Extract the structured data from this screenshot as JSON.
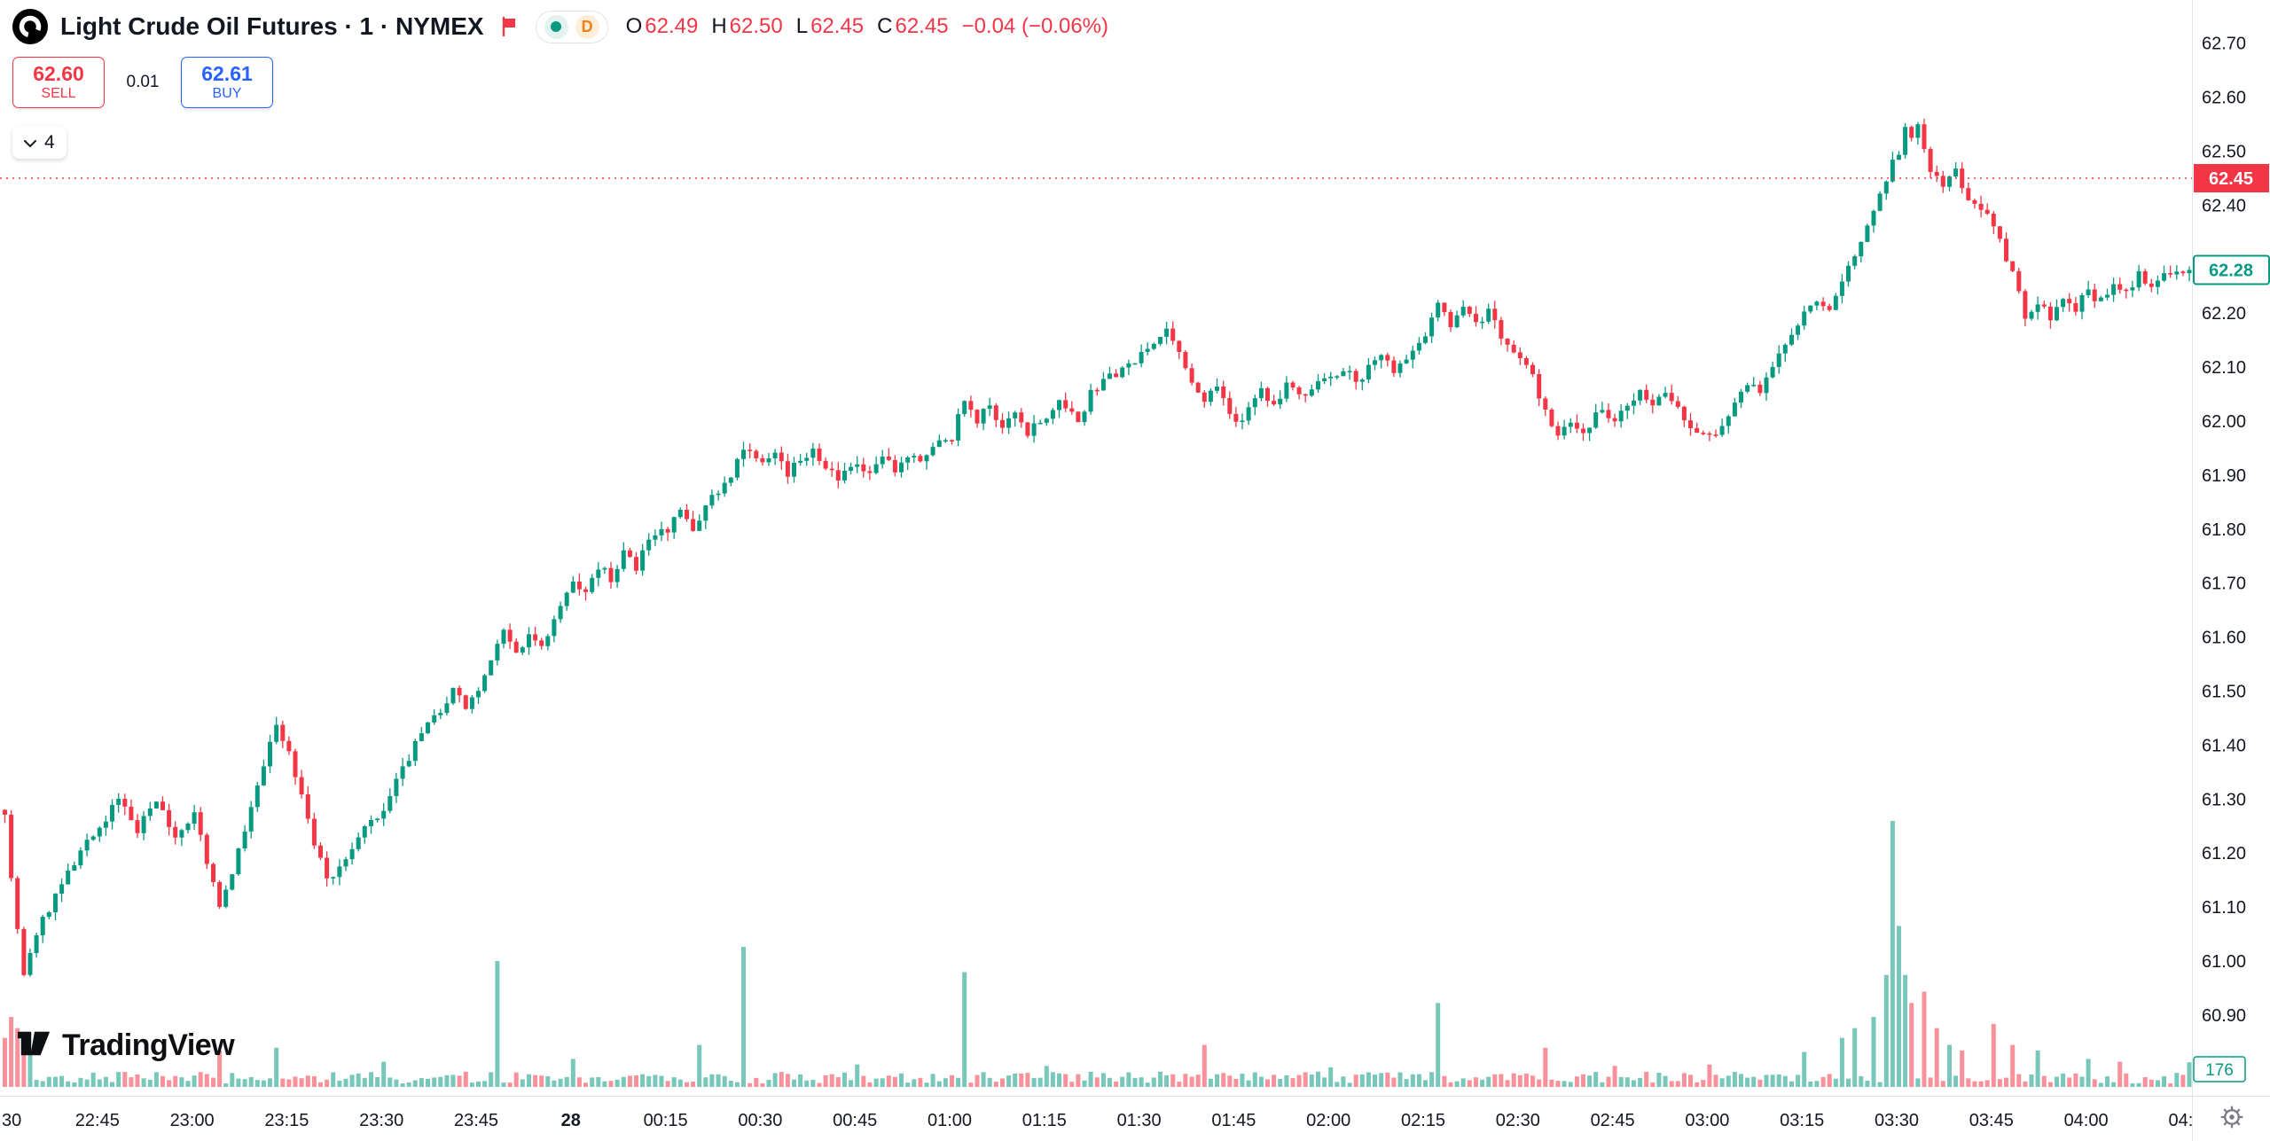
{
  "header": {
    "title": "Light Crude Oil Futures · 1 · NYMEX",
    "legend": {
      "o_label": "O",
      "o_value": "62.49",
      "h_label": "H",
      "h_value": "62.50",
      "l_label": "L",
      "l_value": "62.45",
      "c_label": "C",
      "c_value": "62.45",
      "change": "−0.04 (−0.06%)"
    },
    "delayed_badge": "D"
  },
  "trade_panel": {
    "sell_price": "62.60",
    "sell_label": "SELL",
    "spread": "0.01",
    "buy_price": "62.61",
    "buy_label": "BUY"
  },
  "drawings_chip": {
    "count": "4"
  },
  "watermark": {
    "brand": "TradingView"
  },
  "chart_data": {
    "type": "candlestick",
    "title": "Light Crude Oil Futures · 1 · NYMEX",
    "interval_minutes": 1,
    "exchange": "NYMEX",
    "legend": {
      "open": 62.49,
      "high": 62.5,
      "low": 62.45,
      "close": 62.45,
      "change": -0.04,
      "change_pct": -0.06
    },
    "prev_close": 62.45,
    "last_price": 62.28,
    "last_volume": 176,
    "colors": {
      "up": "#089981",
      "down": "#F23645",
      "prev_close_line": "#F23645",
      "axis_text": "#131722"
    },
    "y_axis": {
      "top_price": 62.78,
      "ticks": [
        62.7,
        62.6,
        62.5,
        62.4,
        62.2,
        62.1,
        62.0,
        61.9,
        61.8,
        61.7,
        61.6,
        61.5,
        61.4,
        61.3,
        61.2,
        61.1,
        61.0,
        60.9
      ]
    },
    "x_axis": {
      "bold_label": "28",
      "labels": [
        [
          0,
          "30"
        ],
        [
          15,
          "22:45"
        ],
        [
          30,
          "23:00"
        ],
        [
          45,
          "23:15"
        ],
        [
          60,
          "23:30"
        ],
        [
          75,
          "23:45"
        ],
        [
          90,
          "28"
        ],
        [
          105,
          "00:15"
        ],
        [
          120,
          "00:30"
        ],
        [
          135,
          "00:45"
        ],
        [
          150,
          "01:00"
        ],
        [
          165,
          "01:15"
        ],
        [
          180,
          "01:30"
        ],
        [
          195,
          "01:45"
        ],
        [
          210,
          "02:00"
        ],
        [
          225,
          "02:15"
        ],
        [
          240,
          "02:30"
        ],
        [
          255,
          "02:45"
        ],
        [
          270,
          "03:00"
        ],
        [
          285,
          "03:15"
        ],
        [
          300,
          "03:30"
        ],
        [
          315,
          "03:45"
        ],
        [
          330,
          "04:00"
        ],
        [
          345,
          "04:"
        ]
      ]
    },
    "bars": 347,
    "price_path": [
      [
        0,
        61.28
      ],
      [
        1,
        61.15
      ],
      [
        3,
        60.97
      ],
      [
        5,
        61.05
      ],
      [
        8,
        61.12
      ],
      [
        12,
        61.2
      ],
      [
        15,
        61.25
      ],
      [
        18,
        61.3
      ],
      [
        21,
        61.24
      ],
      [
        24,
        61.3
      ],
      [
        27,
        61.22
      ],
      [
        30,
        61.27
      ],
      [
        32,
        61.18
      ],
      [
        34,
        61.1
      ],
      [
        37,
        61.2
      ],
      [
        40,
        61.32
      ],
      [
        43,
        61.44
      ],
      [
        45,
        61.38
      ],
      [
        47,
        61.3
      ],
      [
        49,
        61.22
      ],
      [
        51,
        61.15
      ],
      [
        54,
        61.18
      ],
      [
        57,
        61.25
      ],
      [
        60,
        61.28
      ],
      [
        62,
        61.33
      ],
      [
        65,
        61.4
      ],
      [
        68,
        61.45
      ],
      [
        71,
        61.5
      ],
      [
        73,
        61.47
      ],
      [
        75,
        61.5
      ],
      [
        77,
        61.55
      ],
      [
        79,
        61.61
      ],
      [
        81,
        61.57
      ],
      [
        83,
        61.6
      ],
      [
        85,
        61.58
      ],
      [
        87,
        61.63
      ],
      [
        90,
        61.7
      ],
      [
        92,
        61.68
      ],
      [
        94,
        61.73
      ],
      [
        96,
        61.71
      ],
      [
        98,
        61.76
      ],
      [
        100,
        61.73
      ],
      [
        102,
        61.78
      ],
      [
        105,
        61.8
      ],
      [
        107,
        61.83
      ],
      [
        109,
        61.8
      ],
      [
        111,
        61.84
      ],
      [
        113,
        61.87
      ],
      [
        115,
        61.9
      ],
      [
        117,
        61.95
      ],
      [
        120,
        61.93
      ],
      [
        122,
        61.95
      ],
      [
        124,
        61.9
      ],
      [
        126,
        61.93
      ],
      [
        128,
        61.95
      ],
      [
        130,
        61.92
      ],
      [
        132,
        61.89
      ],
      [
        135,
        61.92
      ],
      [
        137,
        61.9
      ],
      [
        139,
        61.93
      ],
      [
        141,
        61.91
      ],
      [
        143,
        61.94
      ],
      [
        145,
        61.92
      ],
      [
        147,
        61.95
      ],
      [
        150,
        61.97
      ],
      [
        152,
        62.04
      ],
      [
        154,
        62.0
      ],
      [
        156,
        62.03
      ],
      [
        158,
        61.99
      ],
      [
        160,
        62.02
      ],
      [
        162,
        61.98
      ],
      [
        165,
        62.01
      ],
      [
        167,
        62.03
      ],
      [
        170,
        62.0
      ],
      [
        172,
        62.05
      ],
      [
        175,
        62.08
      ],
      [
        178,
        62.1
      ],
      [
        180,
        62.12
      ],
      [
        182,
        62.14
      ],
      [
        184,
        62.17
      ],
      [
        186,
        62.13
      ],
      [
        188,
        62.08
      ],
      [
        190,
        62.04
      ],
      [
        192,
        62.07
      ],
      [
        195,
        61.99
      ],
      [
        197,
        62.03
      ],
      [
        199,
        62.06
      ],
      [
        201,
        62.03
      ],
      [
        203,
        62.07
      ],
      [
        206,
        62.05
      ],
      [
        208,
        62.08
      ],
      [
        210,
        62.08
      ],
      [
        212,
        62.1
      ],
      [
        214,
        62.07
      ],
      [
        216,
        62.1
      ],
      [
        218,
        62.12
      ],
      [
        220,
        62.09
      ],
      [
        222,
        62.12
      ],
      [
        225,
        62.15
      ],
      [
        227,
        62.22
      ],
      [
        229,
        62.18
      ],
      [
        231,
        62.21
      ],
      [
        233,
        62.18
      ],
      [
        235,
        62.2
      ],
      [
        237,
        62.16
      ],
      [
        240,
        62.12
      ],
      [
        242,
        62.08
      ],
      [
        244,
        62.02
      ],
      [
        246,
        61.97
      ],
      [
        248,
        62.0
      ],
      [
        250,
        61.97
      ],
      [
        252,
        62.02
      ],
      [
        255,
        62.0
      ],
      [
        257,
        62.03
      ],
      [
        259,
        62.06
      ],
      [
        261,
        62.03
      ],
      [
        263,
        62.06
      ],
      [
        265,
        62.03
      ],
      [
        267,
        61.99
      ],
      [
        270,
        61.97
      ],
      [
        272,
        61.99
      ],
      [
        274,
        62.03
      ],
      [
        276,
        62.07
      ],
      [
        278,
        62.05
      ],
      [
        280,
        62.1
      ],
      [
        282,
        62.14
      ],
      [
        285,
        62.2
      ],
      [
        287,
        62.23
      ],
      [
        289,
        62.21
      ],
      [
        291,
        62.26
      ],
      [
        293,
        62.3
      ],
      [
        295,
        62.36
      ],
      [
        297,
        62.42
      ],
      [
        299,
        62.48
      ],
      [
        300,
        62.5
      ],
      [
        301,
        62.54
      ],
      [
        302,
        62.52
      ],
      [
        303,
        62.55
      ],
      [
        304,
        62.5
      ],
      [
        305,
        62.47
      ],
      [
        307,
        62.44
      ],
      [
        309,
        62.46
      ],
      [
        311,
        62.41
      ],
      [
        313,
        62.4
      ],
      [
        315,
        62.36
      ],
      [
        317,
        62.3
      ],
      [
        319,
        62.24
      ],
      [
        320,
        62.19
      ],
      [
        322,
        62.22
      ],
      [
        324,
        62.19
      ],
      [
        326,
        62.23
      ],
      [
        328,
        62.21
      ],
      [
        330,
        62.24
      ],
      [
        332,
        62.22
      ],
      [
        334,
        62.26
      ],
      [
        336,
        62.24
      ],
      [
        338,
        62.27
      ],
      [
        340,
        62.25
      ],
      [
        343,
        62.28
      ],
      [
        346,
        62.28
      ]
    ],
    "volume": {
      "max_scale": 1900,
      "base_min": 25,
      "base_range": 85,
      "spikes": {
        "0": 350,
        "1": 500,
        "2": 420,
        "3": 300,
        "4": 250,
        "34": 260,
        "43": 280,
        "60": 180,
        "78": 900,
        "90": 200,
        "110": 300,
        "117": 1000,
        "135": 160,
        "152": 820,
        "165": 150,
        "190": 300,
        "210": 140,
        "227": 600,
        "244": 280,
        "255": 150,
        "270": 160,
        "285": 250,
        "291": 350,
        "293": 420,
        "296": 500,
        "298": 800,
        "299": 1900,
        "300": 1150,
        "301": 800,
        "302": 600,
        "304": 680,
        "306": 420,
        "308": 300,
        "310": 260,
        "315": 450,
        "318": 300,
        "322": 260,
        "330": 200,
        "335": 180,
        "346": 176
      }
    }
  }
}
